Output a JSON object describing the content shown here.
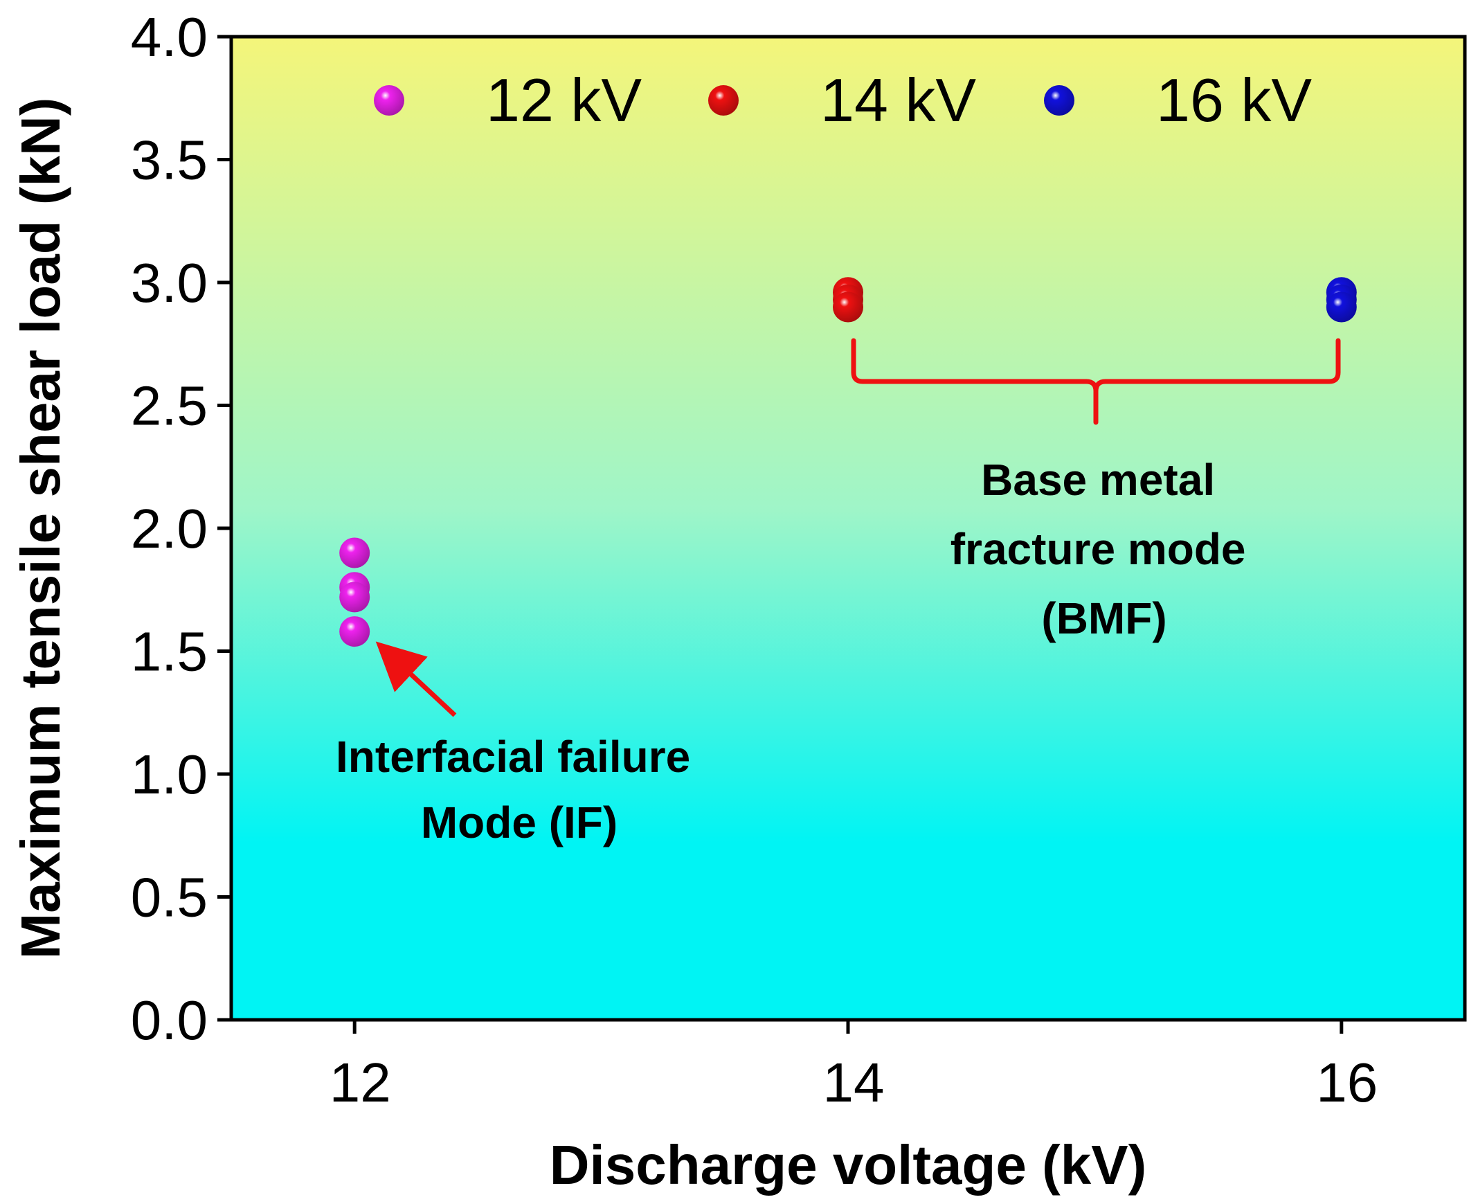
{
  "chart_data": {
    "type": "scatter",
    "title": "",
    "xlabel": "Discharge voltage (kV)",
    "ylabel": "Maximum tensile shear load (kN)",
    "xlim": [
      11.5,
      16.5
    ],
    "ylim": [
      0.0,
      4.0
    ],
    "xticks": [
      "12",
      "14",
      "16"
    ],
    "yticks": [
      "0.0",
      "0.5",
      "1.0",
      "1.5",
      "2.0",
      "2.5",
      "3.0",
      "3.5",
      "4.0"
    ],
    "grid": false,
    "legend_position": "top",
    "background_gradient": {
      "top": "#f4f57a",
      "middle": "#9ff5c8",
      "bottom": "#00f4f4"
    },
    "series": [
      {
        "name": "12 kV",
        "color": "#ee22ee",
        "points": [
          {
            "x": 12,
            "y": 1.9
          },
          {
            "x": 12,
            "y": 1.76
          },
          {
            "x": 12,
            "y": 1.72
          },
          {
            "x": 12,
            "y": 1.58
          }
        ]
      },
      {
        "name": "14 kV",
        "color": "#ee1111",
        "points": [
          {
            "x": 14,
            "y": 2.96
          },
          {
            "x": 14,
            "y": 2.93
          },
          {
            "x": 14,
            "y": 2.9
          }
        ]
      },
      {
        "name": "16 kV",
        "color": "#1111dd",
        "points": [
          {
            "x": 16,
            "y": 2.96
          },
          {
            "x": 16,
            "y": 2.93
          },
          {
            "x": 16,
            "y": 2.9
          }
        ]
      }
    ],
    "annotations": [
      {
        "id": "if",
        "lines": [
          "Interfacial failure",
          "Mode (IF)"
        ]
      },
      {
        "id": "bmf",
        "lines": [
          "Base metal",
          "fracture mode",
          "(BMF)"
        ]
      }
    ],
    "annotation_color": "#ee1111"
  }
}
